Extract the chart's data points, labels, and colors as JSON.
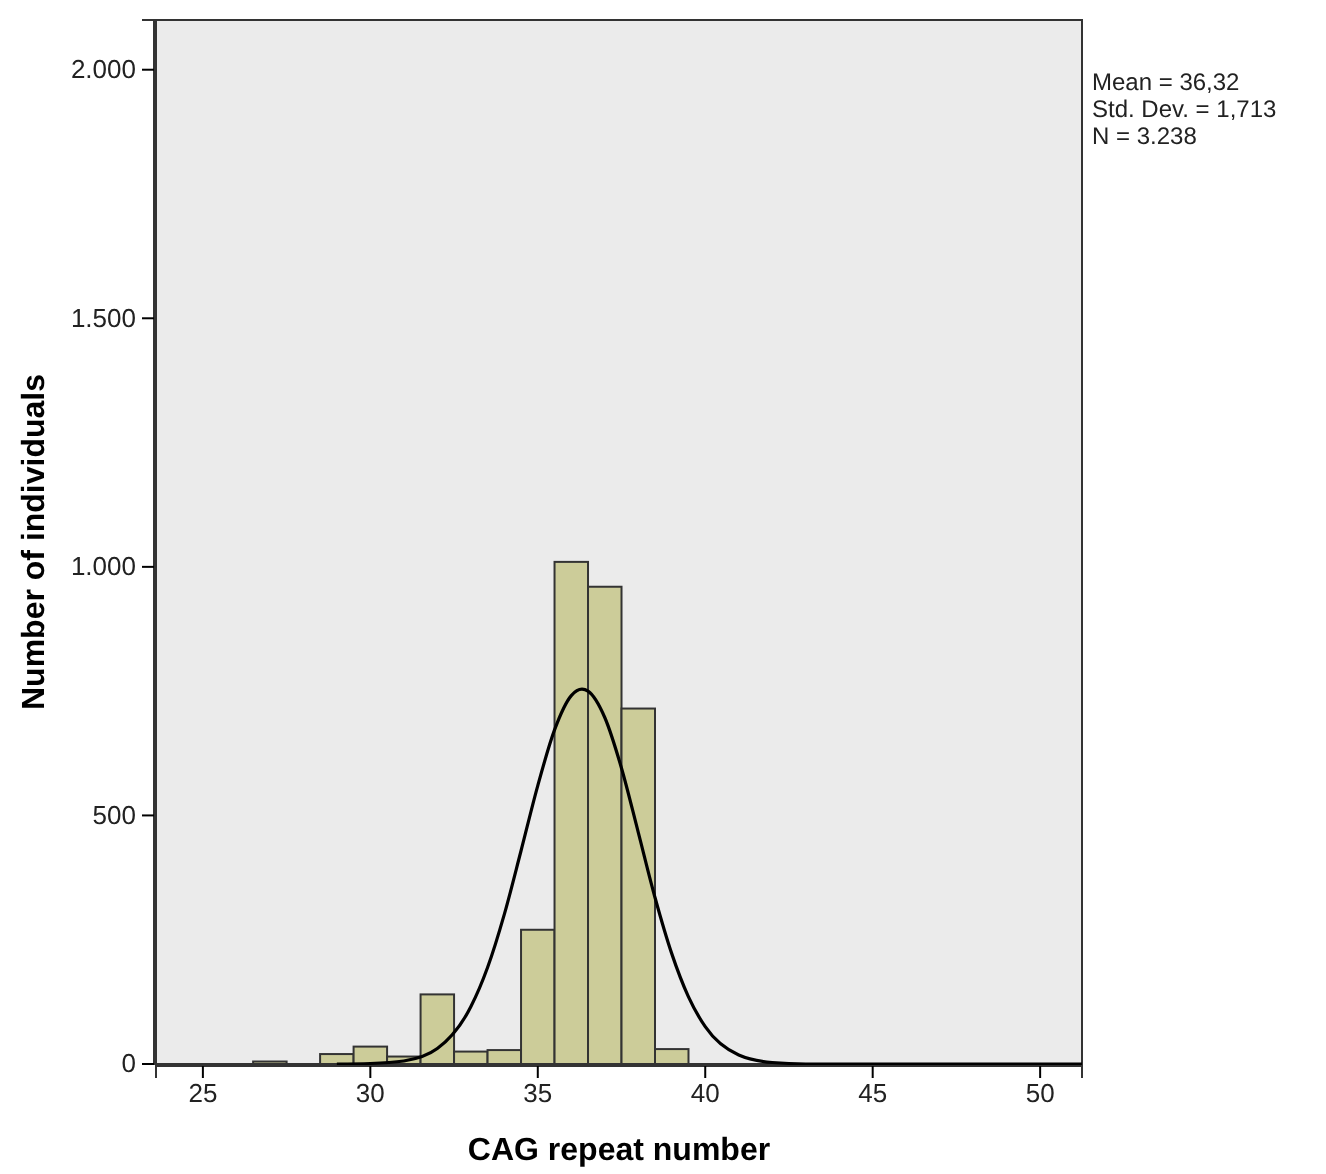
{
  "chart_data": {
    "type": "histogram",
    "xlabel": "CAG repeat number",
    "ylabel": "Number of individuals",
    "xlim": [
      23.6,
      51.25
    ],
    "xticks": [
      25,
      30,
      35,
      40,
      45,
      50
    ],
    "ylim": [
      0,
      2100
    ],
    "yticks": [
      0,
      {
        "value": 500,
        "label": "500"
      },
      {
        "value": 1000,
        "label": "1.000"
      },
      {
        "value": 1500,
        "label": "1.500"
      },
      {
        "value": 2000,
        "label": "2.000"
      }
    ],
    "grid": false,
    "marker": "none",
    "line_style": "solid",
    "series": [
      {
        "type": "histogram",
        "color": "#cccc99",
        "bins": [
          26.5,
          27.5,
          28.5,
          29.5,
          30.5,
          31.5,
          32.5,
          33.5,
          34.5,
          35.5,
          36.5,
          37.5,
          38.5,
          39.5
        ],
        "values": [
          5,
          0,
          20,
          35,
          15,
          140,
          25,
          28,
          270,
          1010,
          960,
          715,
          30
        ]
      },
      {
        "type": "line",
        "color": "#000000",
        "x": [
          29,
          30,
          31,
          32,
          33,
          33.5,
          34,
          34.5,
          35,
          35.5,
          36,
          36.32,
          36.5,
          37,
          37.5,
          38,
          38.5,
          39,
          39.5,
          40,
          41,
          42,
          43,
          44,
          45,
          47,
          51.25
        ],
        "values": [
          0,
          1,
          6,
          31,
          115,
          194,
          301,
          429,
          560,
          672,
          741,
          754,
          750,
          697,
          595,
          466,
          335,
          222,
          135,
          75,
          18,
          3,
          0,
          0,
          0,
          0,
          0
        ]
      }
    ],
    "annotations": [
      "Mean = 36,32",
      "Std. Dev. = 1,713",
      "N = 3.238"
    ]
  }
}
